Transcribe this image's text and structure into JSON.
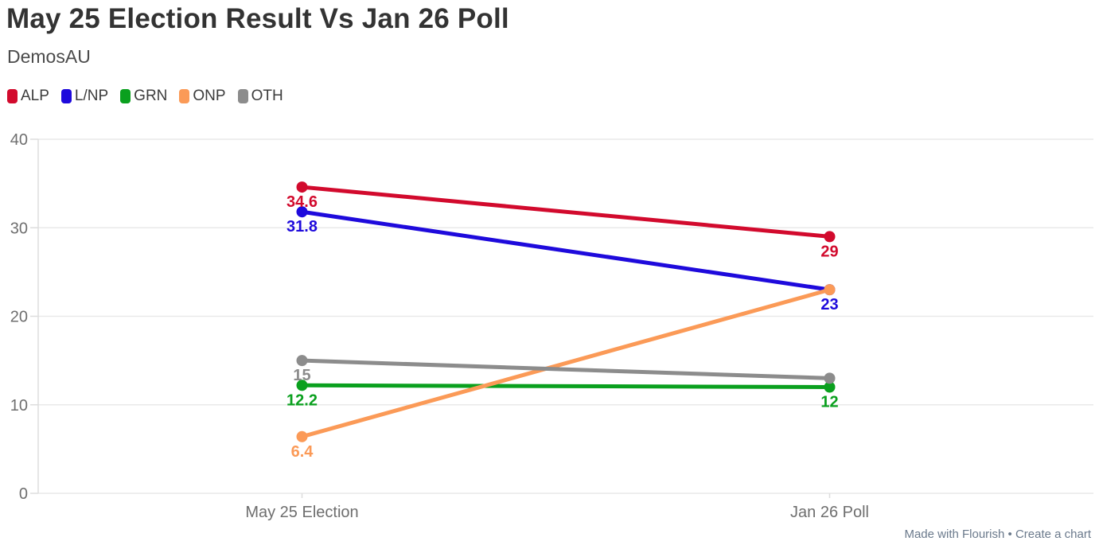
{
  "header": {
    "title": "May 25 Election Result Vs Jan 26 Poll",
    "subtitle": "DemosAU"
  },
  "legend": {
    "items": [
      {
        "label": "ALP",
        "color": "#d20a2d"
      },
      {
        "label": "L/NP",
        "color": "#1e0adc"
      },
      {
        "label": "GRN",
        "color": "#0aa01e"
      },
      {
        "label": "ONP",
        "color": "#fb9a57"
      },
      {
        "label": "OTH",
        "color": "#8c8c8c"
      }
    ]
  },
  "chart_data": {
    "type": "line",
    "title": "May 25 Election Result Vs Jan 26 Poll",
    "subtitle": "DemosAU",
    "categories": [
      "May 25 Election",
      "Jan 26 Poll"
    ],
    "series": [
      {
        "name": "ALP",
        "color": "#d20a2d",
        "values": [
          34.6,
          29
        ],
        "value_labels": [
          "34.6",
          "29"
        ]
      },
      {
        "name": "L/NP",
        "color": "#1e0adc",
        "values": [
          31.8,
          23
        ],
        "value_labels": [
          "31.8",
          "23"
        ]
      },
      {
        "name": "GRN",
        "color": "#0aa01e",
        "values": [
          12.2,
          12
        ],
        "value_labels": [
          "12.2",
          "12"
        ]
      },
      {
        "name": "ONP",
        "color": "#fb9a57",
        "values": [
          6.4,
          23
        ],
        "value_labels": [
          "6.4",
          ""
        ]
      },
      {
        "name": "OTH",
        "color": "#8c8c8c",
        "values": [
          15,
          13
        ],
        "value_labels": [
          "15",
          ""
        ]
      }
    ],
    "ylim": [
      0,
      40
    ],
    "yticks": [
      0,
      10,
      20,
      30,
      40
    ],
    "xlabel": "",
    "ylabel": "",
    "grid": true,
    "legend_position": "top",
    "colors": {
      "grid_line": "#e9e9e9",
      "axis_line": "#dddddd",
      "tick_label": "#6f6f6f"
    }
  },
  "footer": {
    "made_with": "Made with Flourish",
    "separator": "•",
    "create_link": "Create a chart"
  }
}
